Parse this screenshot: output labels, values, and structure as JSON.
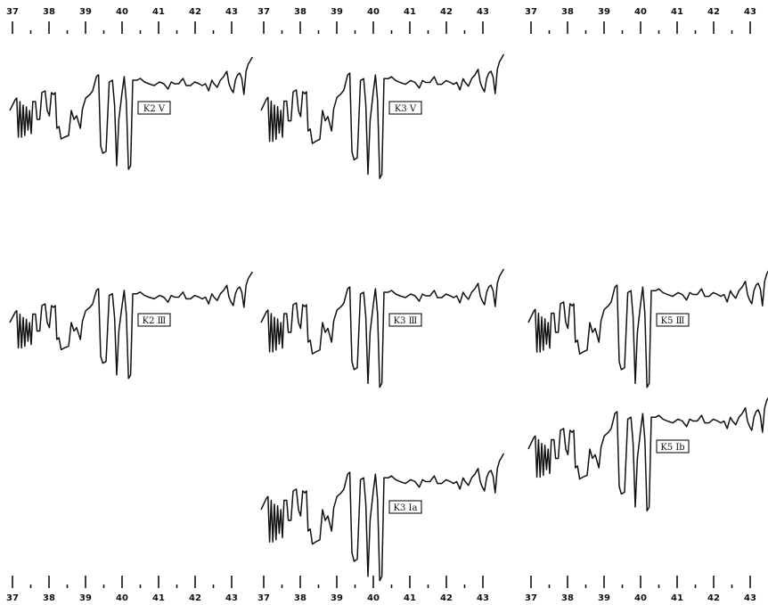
{
  "chart_data": {
    "type": "line",
    "title": "",
    "xlabel": "",
    "ylabel": "",
    "x_tick_labels": [
      "37",
      "38",
      "39",
      "40",
      "41",
      "42",
      "43"
    ],
    "xlim": [
      37,
      43.4
    ],
    "grid": false,
    "legend": "none",
    "axis_scales": [
      {
        "name": "top-left-scale",
        "position": "top",
        "column": 0
      },
      {
        "name": "top-middle-scale",
        "position": "top",
        "column": 1
      },
      {
        "name": "top-right-scale",
        "position": "top",
        "column": 2
      },
      {
        "name": "bottom-left-scale",
        "position": "bottom",
        "column": 0
      },
      {
        "name": "bottom-middle-scale",
        "position": "bottom",
        "column": 1
      },
      {
        "name": "bottom-right-scale",
        "position": "bottom",
        "column": 2
      }
    ],
    "panels": [
      {
        "id": "k2v",
        "label": "K2 V",
        "label_display": "K2 Ⅴ",
        "column": 0,
        "row": 0
      },
      {
        "id": "k3v",
        "label": "K3 V",
        "label_display": "K3 Ⅴ",
        "column": 1,
        "row": 0
      },
      {
        "id": "k2iii",
        "label": "K2 III",
        "label_display": "K2 Ⅲ",
        "column": 0,
        "row": 1
      },
      {
        "id": "k3iii",
        "label": "K3 III",
        "label_display": "K3 Ⅲ",
        "column": 1,
        "row": 1
      },
      {
        "id": "k5iii",
        "label": "K5 III",
        "label_display": "K5 Ⅲ",
        "column": 2,
        "row": 1
      },
      {
        "id": "k5ib",
        "label": "K5 Ib",
        "label_display": "K5 Ib",
        "column": 2,
        "row": 2
      },
      {
        "id": "k3ia",
        "label": "K3 Ia",
        "label_display": "K3 Ia",
        "column": 1,
        "row": 3
      }
    ]
  }
}
